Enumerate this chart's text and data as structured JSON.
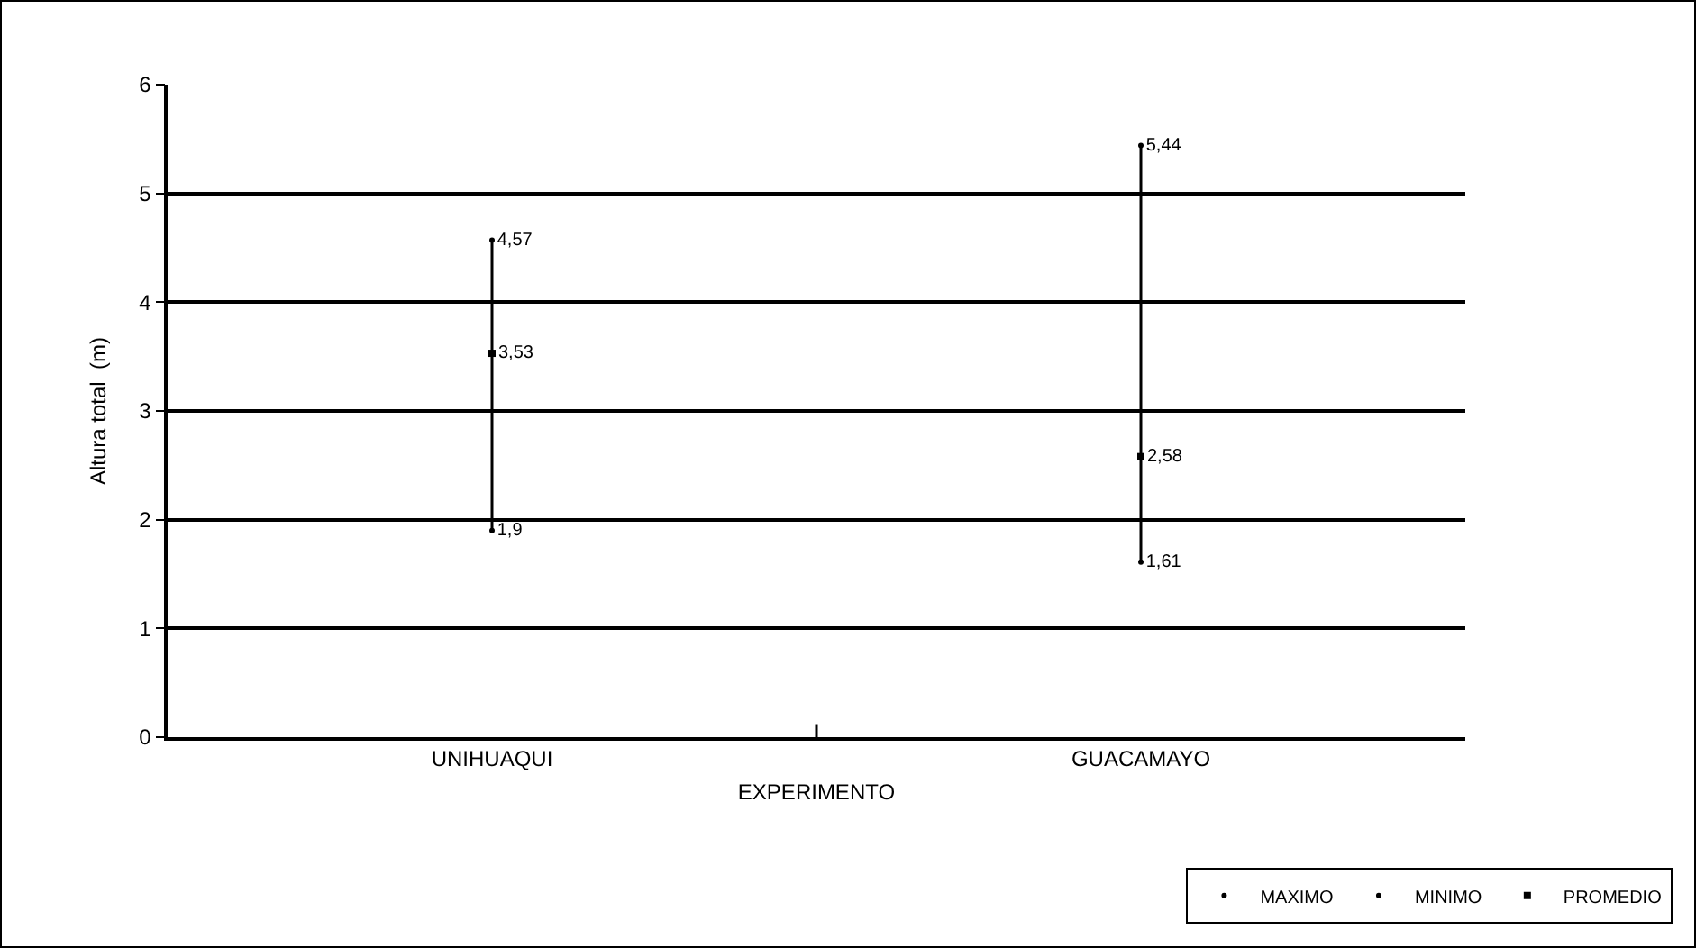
{
  "chart_data": {
    "type": "scatter",
    "xlabel": "EXPERIMENTO",
    "ylabel": "Altura total  (m)",
    "categories": [
      "UNIHUAQUI",
      "GUACAMAYO"
    ],
    "series": [
      {
        "name": "MAXIMO",
        "color": "#000000",
        "values": [
          4.57,
          5.44
        ],
        "value_labels": [
          "4,57",
          "5,44"
        ]
      },
      {
        "name": "MINIMO",
        "color": "#000000",
        "values": [
          1.9,
          1.61
        ],
        "value_labels": [
          "1,9",
          "1,61"
        ]
      },
      {
        "name": "PROMEDIO",
        "color": "#000000",
        "marker": "square",
        "values": [
          3.53,
          2.58
        ],
        "value_labels": [
          "3,53",
          "2,58"
        ]
      }
    ],
    "ylim": [
      0,
      6
    ],
    "yticks": [
      0,
      1,
      2,
      3,
      4,
      5,
      6
    ],
    "grid": "y",
    "legend": "bottom right"
  }
}
